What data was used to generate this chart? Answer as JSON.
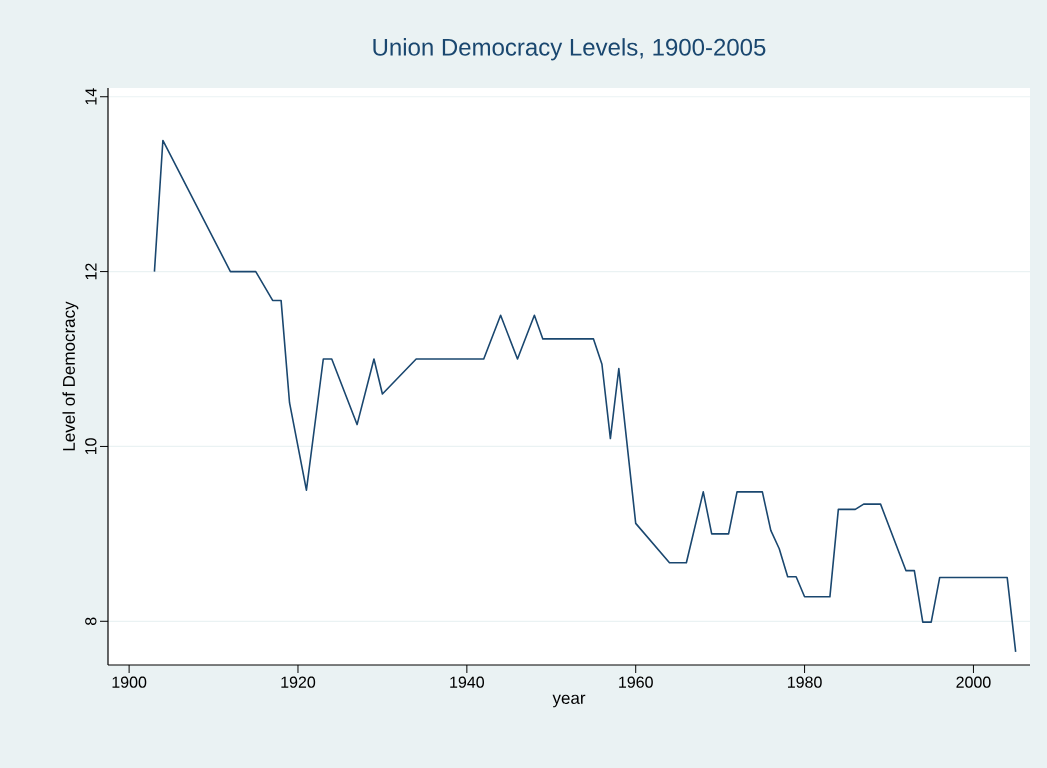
{
  "chart_data": {
    "type": "line",
    "title": "Union Democracy Levels, 1900-2005",
    "xlabel": "year",
    "ylabel": "Level of Democracy",
    "x": [
      1903,
      1904,
      1912,
      1915,
      1917,
      1918,
      1919,
      1921,
      1923,
      1924,
      1927,
      1929,
      1930,
      1934,
      1942,
      1944,
      1946,
      1948,
      1949,
      1955,
      1956,
      1957,
      1958,
      1960,
      1964,
      1966,
      1968,
      1969,
      1971,
      1972,
      1975,
      1976,
      1977,
      1978,
      1979,
      1980,
      1983,
      1984,
      1986,
      1987,
      1989,
      1992,
      1993,
      1994,
      1995,
      1996,
      2004,
      2005
    ],
    "series": [
      {
        "color": "#1a476f",
        "values": [
          12,
          13.5,
          12,
          12,
          11.67,
          11.67,
          10.5,
          9.5,
          11,
          11,
          10.25,
          11,
          10.6,
          11,
          11,
          11.5,
          11,
          11.5,
          11.23,
          11.23,
          10.94,
          10.09,
          10.89,
          9.12,
          8.67,
          8.67,
          9.48,
          9,
          9,
          9.48,
          9.48,
          9.04,
          8.83,
          8.51,
          8.51,
          8.28,
          8.28,
          9.28,
          9.28,
          9.34,
          9.34,
          8.58,
          8.58,
          7.99,
          7.99,
          8.5,
          8.5,
          7.65
        ]
      }
    ],
    "xlim": [
      1897.5,
      2006.7
    ],
    "ylim": [
      7.5,
      14.1
    ],
    "xticks": [
      1900,
      1920,
      1940,
      1960,
      1980,
      2000
    ],
    "yticks": [
      8,
      10,
      12,
      14
    ],
    "grid": "y"
  }
}
